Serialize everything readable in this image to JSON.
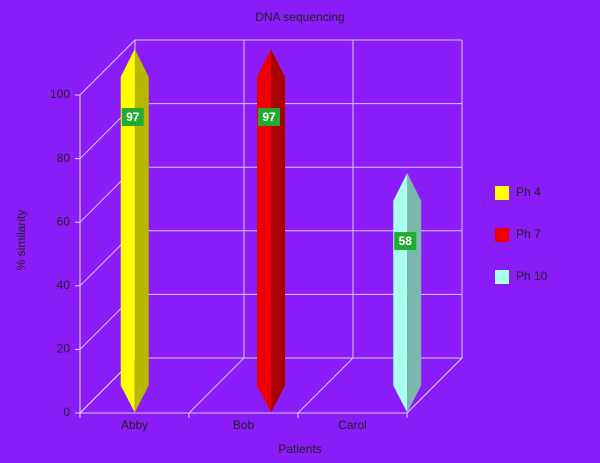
{
  "chart_data": {
    "type": "bar3d",
    "title": "DNA sequencing",
    "categories": [
      "Abby",
      "Bob",
      "Carol"
    ],
    "series": [
      {
        "name": "Ph 4",
        "color": "#ffff00",
        "values": [
          97,
          null,
          null
        ]
      },
      {
        "name": "Ph 7",
        "color": "#ee0000",
        "values": [
          null,
          97,
          null
        ]
      },
      {
        "name": "Ph 10",
        "color": "#aaffee",
        "values": [
          null,
          null,
          58
        ]
      }
    ],
    "x_label": "Patients",
    "y_label": "% similarity",
    "ylim": [
      0,
      100
    ],
    "yticks": [
      0,
      20,
      40,
      60,
      80,
      100
    ],
    "grid": true,
    "legend": "right"
  }
}
